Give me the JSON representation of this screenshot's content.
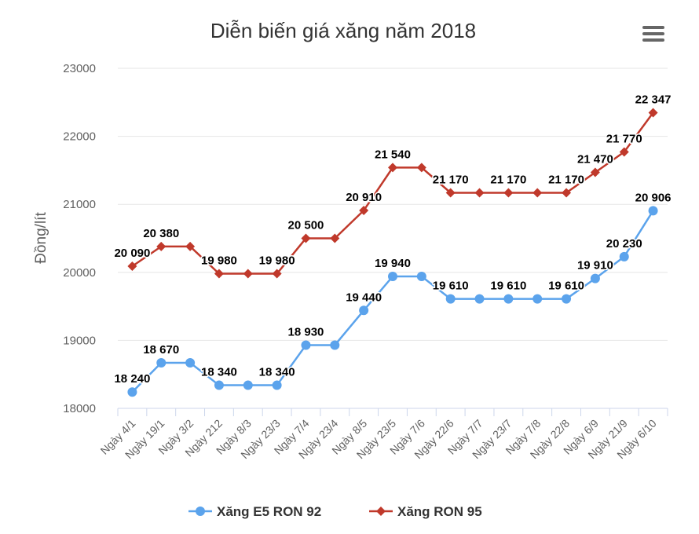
{
  "chart_data": {
    "type": "line",
    "title": "Diễn biến giá xăng năm 2018",
    "xlabel": "",
    "ylabel": "Đồng/lít",
    "ylim": [
      18000,
      23000
    ],
    "yticks": [
      "18000",
      "19000",
      "20000",
      "21000",
      "22000",
      "23000"
    ],
    "grid": true,
    "legend_position": "bottom",
    "categories": [
      "Ngày 4/1",
      "Ngày 19/1",
      "Ngày 3/2",
      "Ngày 212",
      "Ngày 8/3",
      "Ngày 23/3",
      "Ngày 7/4",
      "Ngày 23/4",
      "Ngày 8/5",
      "Ngày 23/5",
      "Ngày 7/6",
      "Ngày 22/6",
      "Ngày 7/7",
      "Ngày 23/7",
      "Ngày 7/8",
      "Ngày 22/8",
      "Ngày 6/9",
      "Ngày 21/9",
      "Ngày 6/10"
    ],
    "series": [
      {
        "name": "Xăng E5 RON 92",
        "color": "#5ba3ec",
        "marker": "circle",
        "values": [
          18240,
          18670,
          18670,
          18340,
          18340,
          18340,
          18930,
          18930,
          19440,
          19940,
          19940,
          19610,
          19610,
          19610,
          19610,
          19610,
          19910,
          20230,
          20906
        ],
        "labels": [
          "18 240",
          "18 670",
          null,
          "18 340",
          null,
          "18 340",
          "18 930",
          null,
          "19 440",
          "19 940",
          null,
          "19 610",
          null,
          "19 610",
          null,
          "19 610",
          "19 910",
          "20 230",
          "20 906"
        ]
      },
      {
        "name": "Xăng RON 95",
        "color": "#c0392b",
        "marker": "diamond",
        "values": [
          20090,
          20380,
          20380,
          19980,
          19980,
          19980,
          20500,
          20500,
          20910,
          21540,
          21540,
          21170,
          21170,
          21170,
          21170,
          21170,
          21470,
          21770,
          22347
        ],
        "labels": [
          "20 090",
          "20 380",
          null,
          "19 980",
          null,
          "19 980",
          "20 500",
          null,
          "20 910",
          "21 540",
          null,
          "21 170",
          null,
          "21 170",
          null,
          "21 170",
          "21 470",
          "21 770",
          "22 347"
        ]
      }
    ]
  },
  "menu_icon": "hamburger-menu-icon"
}
